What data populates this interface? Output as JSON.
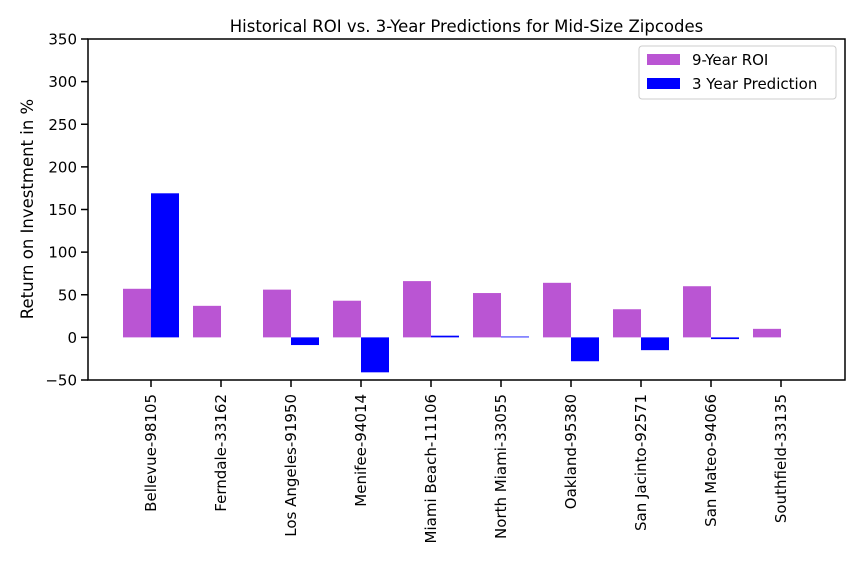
{
  "chart_data": {
    "type": "bar",
    "title": "Historical ROI vs. 3-Year Predictions for Mid-Size Zipcodes",
    "xlabel": "",
    "ylabel": "Return on Investment in %",
    "ylim": [
      -50,
      350
    ],
    "yticks": [
      -50,
      0,
      50,
      100,
      150,
      200,
      250,
      300,
      350
    ],
    "ytick_labels": [
      "−50",
      "0",
      "50",
      "100",
      "150",
      "200",
      "250",
      "300",
      "350"
    ],
    "grid": false,
    "legend_position": "top-right",
    "categories": [
      "Bellevue-98105",
      "Ferndale-33162",
      "Los Angeles-91950",
      "Menifee-94014",
      "Miami Beach-11106",
      "North Miami-33055",
      "Oakland-95380",
      "San Jacinto-92571",
      "San Mateo-94066",
      "Southfield-33135"
    ],
    "series": [
      {
        "name": "9-Year ROI",
        "color": "#BA55D3",
        "values": [
          57,
          37,
          56,
          43,
          66,
          52,
          64,
          33,
          60,
          10
        ]
      },
      {
        "name": "3 Year Prediction",
        "color": "#0000FF",
        "values": [
          169,
          0,
          -9,
          -41,
          2,
          1,
          -28,
          -15,
          -2,
          0
        ]
      }
    ]
  }
}
